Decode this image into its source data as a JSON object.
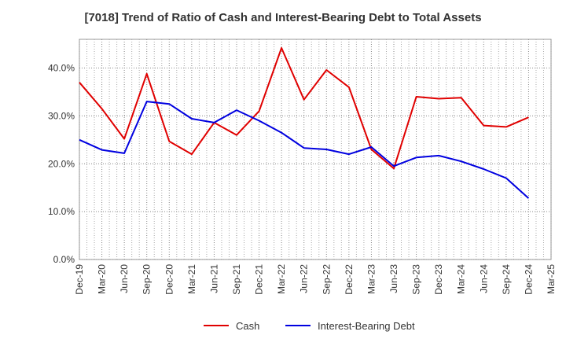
{
  "chart_data": {
    "type": "line",
    "title": "[7018]  Trend of Ratio of Cash and Interest-Bearing Debt to Total Assets",
    "xlabel": "",
    "ylabel": "",
    "categories": [
      "Dec-19",
      "Mar-20",
      "Jun-20",
      "Sep-20",
      "Dec-20",
      "Mar-21",
      "Jun-21",
      "Sep-21",
      "Dec-21",
      "Mar-22",
      "Jun-22",
      "Sep-22",
      "Dec-22",
      "Mar-23",
      "Jun-23",
      "Sep-23",
      "Dec-23",
      "Mar-24",
      "Jun-24",
      "Sep-24",
      "Dec-24",
      "Mar-25"
    ],
    "ylim": [
      0,
      46
    ],
    "yticks": [
      0,
      10,
      20,
      30,
      40
    ],
    "ytick_labels": [
      "0.0%",
      "10.0%",
      "20.0%",
      "30.0%",
      "40.0%"
    ],
    "grid": true,
    "legend_position": "bottom",
    "series": [
      {
        "name": "Cash",
        "color": "#e00000",
        "values": [
          37.0,
          31.5,
          25.2,
          38.8,
          24.7,
          22.0,
          28.6,
          26.0,
          31.0,
          44.2,
          33.4,
          39.6,
          36.0,
          23.0,
          19.0,
          34.0,
          33.6,
          33.8,
          28.0,
          27.7,
          29.7,
          null
        ]
      },
      {
        "name": "Interest-Bearing Debt",
        "color": "#0000e0",
        "values": [
          25.0,
          22.9,
          22.2,
          33.0,
          32.5,
          29.4,
          28.6,
          31.2,
          29.0,
          26.5,
          23.3,
          23.0,
          22.0,
          23.5,
          19.5,
          21.3,
          21.7,
          20.5,
          18.9,
          17.0,
          12.8,
          null
        ]
      }
    ]
  }
}
